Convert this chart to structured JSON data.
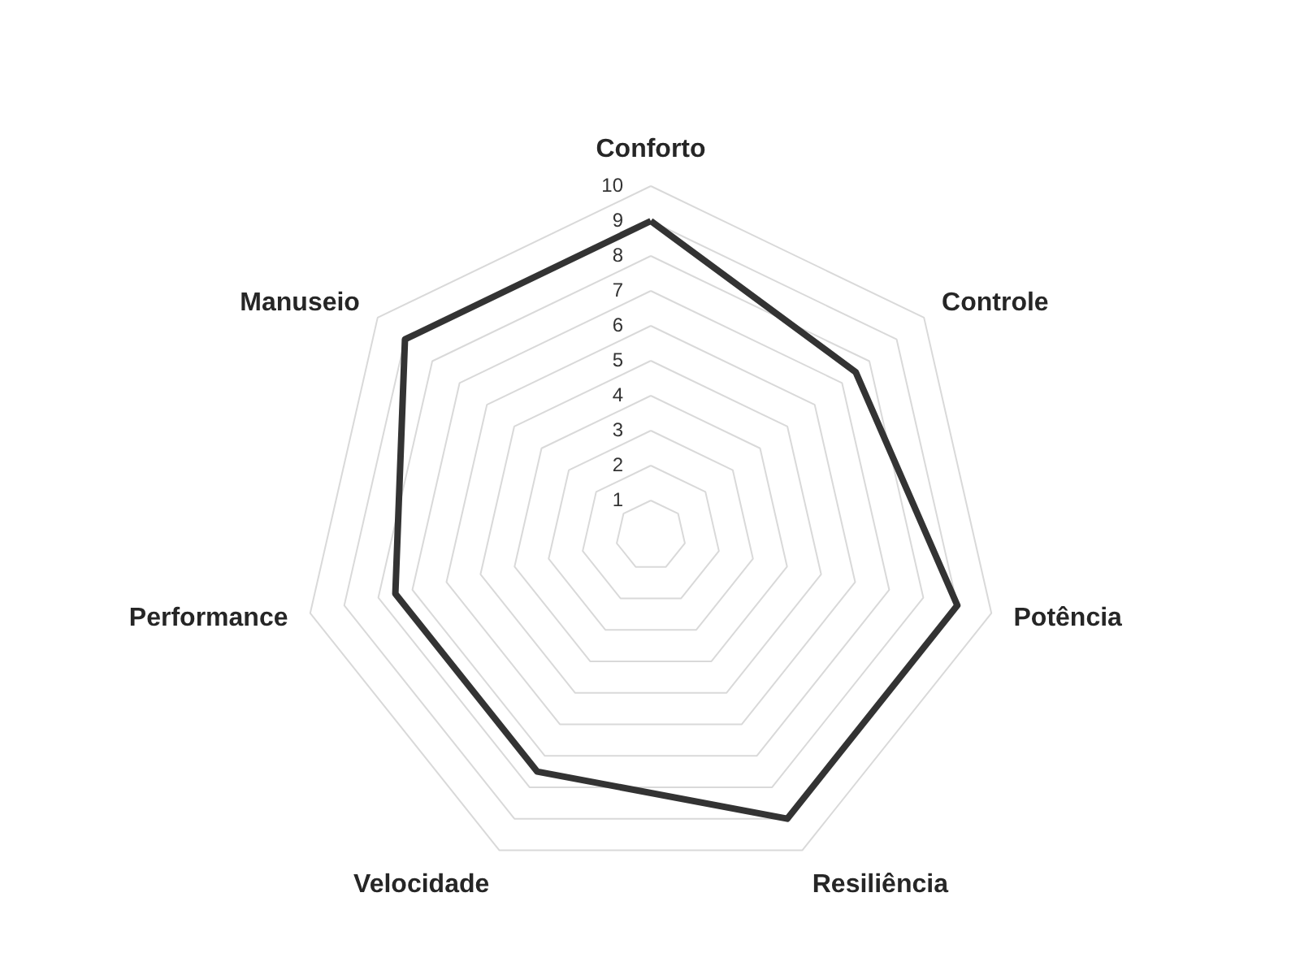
{
  "chart_data": {
    "type": "radar",
    "categories": [
      "Conforto",
      "Controle",
      "Potência",
      "Resiliência",
      "Velocidade",
      "Performance",
      "Manuseio"
    ],
    "series": [
      {
        "color": "#333333",
        "values": [
          9,
          7.5,
          9,
          9,
          7.5,
          7.5,
          9
        ]
      }
    ],
    "ylim": [
      0,
      10
    ],
    "yticks": [
      1,
      2,
      3,
      4,
      5,
      6,
      7,
      8,
      9,
      10
    ],
    "grid": true,
    "line_style": "solid"
  }
}
